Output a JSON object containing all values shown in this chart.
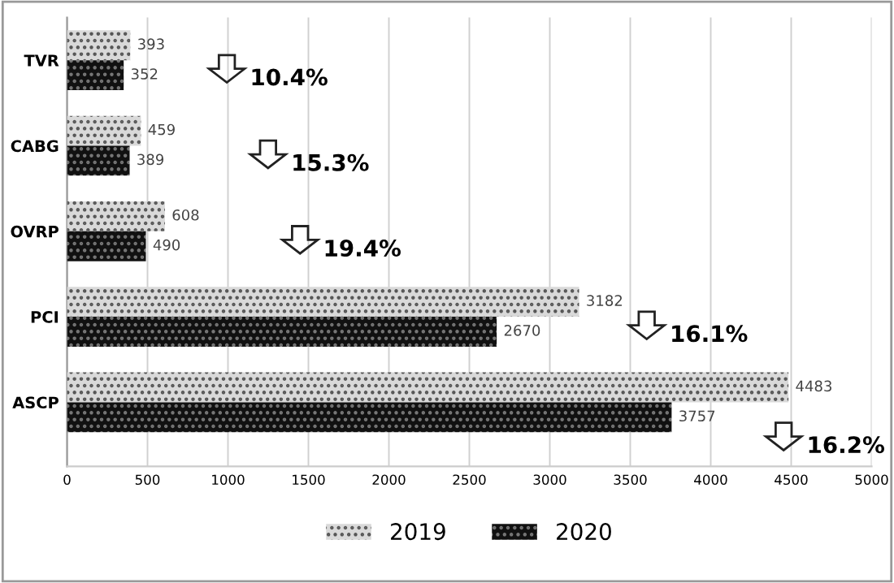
{
  "chart_data": {
    "type": "bar",
    "orientation": "horizontal",
    "categories": [
      "TVR",
      "CABG",
      "OVRP",
      "PCI",
      "ASCP"
    ],
    "series": [
      {
        "name": "2019",
        "color": "#d9d9d9",
        "values": [
          393,
          459,
          608,
          3182,
          4483
        ]
      },
      {
        "name": "2020",
        "color": "#111111",
        "values": [
          352,
          389,
          490,
          2670,
          3757
        ]
      }
    ],
    "xlim": [
      0,
      5000
    ],
    "xticks": [
      0,
      500,
      1000,
      1500,
      2000,
      2500,
      3000,
      3500,
      4000,
      4500,
      5000
    ],
    "grid": "x",
    "legend": "bottom",
    "data_labels": true,
    "annotations": [
      "10.4%",
      "15.3%",
      "19.4%",
      "16.1%",
      "16.2%"
    ]
  }
}
